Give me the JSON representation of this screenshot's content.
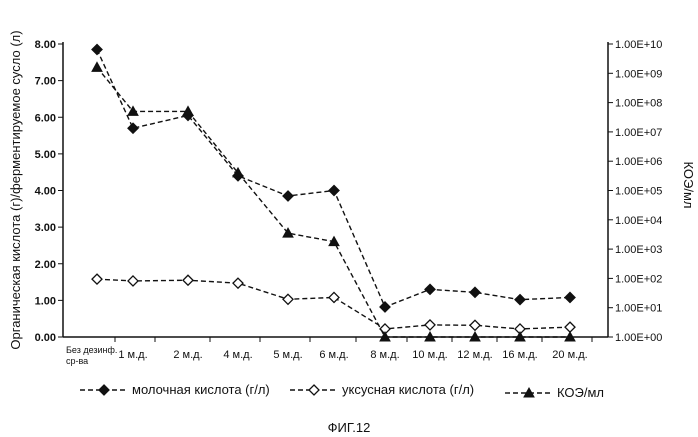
{
  "chart_data": {
    "type": "line",
    "categories": [
      "Без дезинф. ср-ва",
      "1 м.д.",
      "2 м.д.",
      "4 м.д.",
      "5 м.д.",
      "6 м.д.",
      "8 м.д.",
      "10 м.д.",
      "12 м.д.",
      "16 м.д.",
      "20 м.д."
    ],
    "ylabel": "Органическая кислота (г)/ферментируемое сусло (л)",
    "y2label": "КОЭ/мл",
    "ylim": [
      0,
      8
    ],
    "y2_scale": "log",
    "y2lim": [
      1,
      10000000000
    ],
    "y_ticks": [
      "0.00",
      "1.00",
      "2.00",
      "3.00",
      "4.00",
      "5.00",
      "6.00",
      "7.00",
      "8.00"
    ],
    "y2_ticks": [
      "1.00E+00",
      "1.00E+01",
      "1.00E+02",
      "1.00E+03",
      "1.00E+04",
      "1.00E+05",
      "1.00E+06",
      "1.00E+07",
      "1.00E+08",
      "1.00E+09",
      "1.00E+10"
    ],
    "series": [
      {
        "name": "молочная кислота (г/л)",
        "axis": "left",
        "marker": "diamond-filled",
        "values": [
          7.85,
          5.7,
          6.05,
          4.4,
          3.85,
          4.0,
          0.82,
          1.3,
          1.22,
          1.02,
          1.08
        ]
      },
      {
        "name": "уксусная кислота (г/л)",
        "axis": "left",
        "marker": "diamond-open",
        "values": [
          1.58,
          1.53,
          1.55,
          1.47,
          1.03,
          1.08,
          0.22,
          0.33,
          0.32,
          0.22,
          0.27
        ]
      },
      {
        "name": "КОЭ/мл",
        "axis": "right",
        "marker": "triangle-filled",
        "values": [
          1600000000,
          50000000,
          50000000,
          400000,
          3500,
          1800,
          1,
          1,
          1,
          1,
          1
        ]
      }
    ],
    "legend_position": "bottom",
    "grid": false
  },
  "caption": "ФИГ.12"
}
